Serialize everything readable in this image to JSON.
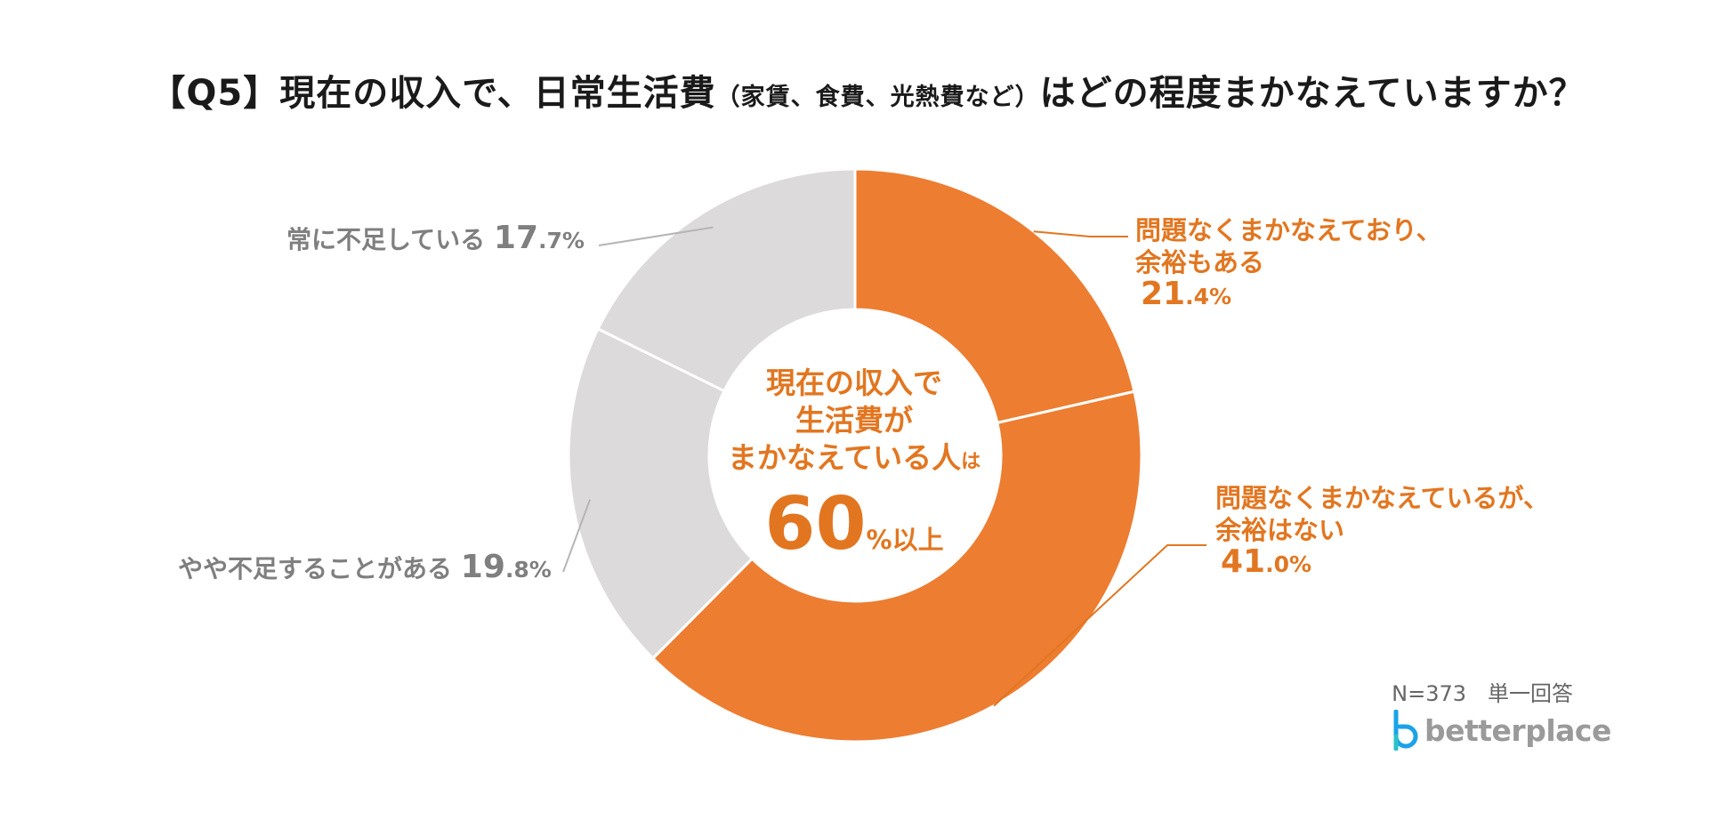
{
  "title": {
    "main_before": "【Q5】現在の収入で、日常生活費",
    "paren": "（家賃、食費、光熱費など）",
    "main_after": "はどの程度まかなえていますか？"
  },
  "chart_data": {
    "type": "pie",
    "variant": "donut",
    "title": "【Q5】現在の収入で、日常生活費（家賃、食費、光熱費など）はどの程度まかなえていますか？",
    "start": "top-clockwise",
    "slices": [
      {
        "label_lines": [
          "問題なくまかなえており、",
          "余裕もある"
        ],
        "value": 21.4,
        "pct_int": "21",
        "pct_dec": ".4%",
        "color": "#ed7d31"
      },
      {
        "label_lines": [
          "問題なくまかなえているが、",
          "余裕はない"
        ],
        "value": 41.0,
        "pct_int": "41",
        "pct_dec": ".0%",
        "color": "#ed7d31"
      },
      {
        "label_lines": [
          "やや不足することがある"
        ],
        "value": 19.8,
        "pct_int": "19",
        "pct_dec": ".8%",
        "color": "#dcdadb"
      },
      {
        "label_lines": [
          "常に不足している"
        ],
        "value": 17.7,
        "pct_int": "17",
        "pct_dec": ".7%",
        "color": "#dcdadb"
      }
    ],
    "center_text": {
      "line1": "現在の収入で",
      "line2": "生活費が",
      "line3_main": "まかなえている人",
      "line3_tail": "は",
      "big": "60",
      "big_suffix": "%以上"
    },
    "accent_color": "#e27620",
    "gray_label_color": "#7f7f7f"
  },
  "footer": {
    "sample": "N=373　単一回答"
  },
  "logo": {
    "text": "betterplace",
    "color": "#1aa3e8"
  }
}
